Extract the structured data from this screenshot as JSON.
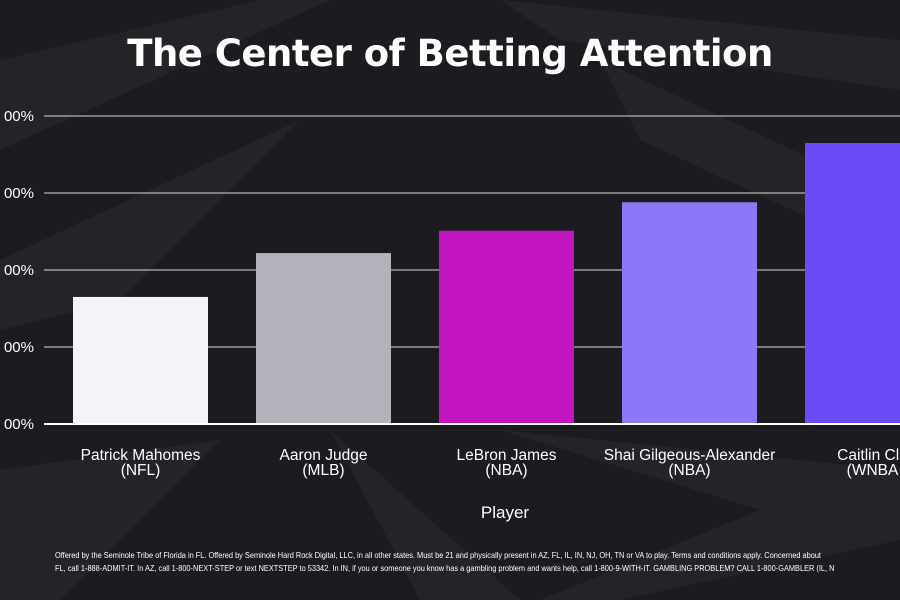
{
  "chart_data": {
    "type": "bar",
    "title": "The Center of Betting Attention",
    "xlabel": "Player",
    "ylabel": "",
    "y_tick_labels": [
      "00%",
      "00%",
      "00%",
      "00%",
      "00%"
    ],
    "ylim": [
      0,
      4
    ],
    "grid": true,
    "categories": [
      {
        "name": "Patrick Mahomes",
        "league": "(NFL)"
      },
      {
        "name": "Aaron Judge",
        "league": "(MLB)"
      },
      {
        "name": "LeBron James",
        "league": "(NBA)"
      },
      {
        "name": "Shai Gilgeous-Alexander",
        "league": "(NBA)"
      },
      {
        "name": "Caitlin Cla",
        "league": "(WNBA"
      }
    ],
    "values": [
      1.65,
      2.22,
      2.51,
      2.88,
      3.65
    ],
    "colors": [
      "#f5f3f9",
      "#b3b2ba",
      "#c316c0",
      "#8b78f8",
      "#6a4bf6"
    ]
  },
  "footer": {
    "line1": "Offered by the Seminole Tribe of Florida in FL. Offered by Seminole Hard Rock Digital, LLC, in all other states. Must be 21 and physically present in AZ, FL, IL, IN, NJ, OH, TN or VA to play. Terms and conditions apply. Concerned about",
    "line2": "FL, call 1-888-ADMIT-IT. In AZ, call 1-800-NEXT-STEP or text NEXTSTEP to 53342. In IN, if you or someone you know has a gambling problem and wants help, call 1-800-9-WITH-IT. GAMBLING PROBLEM? CALL 1-800-GAMBLER (IL, N"
  },
  "colors": {
    "background": "#1c1b1f",
    "gridline": "#d8d8dc"
  }
}
